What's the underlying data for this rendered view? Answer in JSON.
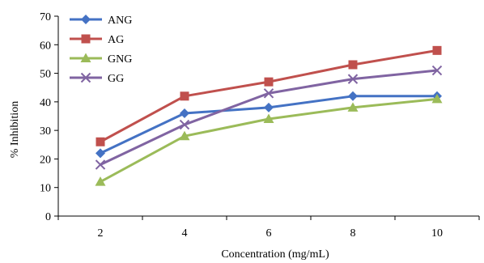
{
  "chart_data": {
    "type": "line",
    "title": "",
    "xlabel": "Concentration (mg/mL)",
    "ylabel": "% Inhibition",
    "categories": [
      "2",
      "4",
      "6",
      "8",
      "10"
    ],
    "ylim": [
      0,
      70
    ],
    "yticks": [
      0,
      10,
      20,
      30,
      40,
      50,
      60,
      70
    ],
    "grid": false,
    "legend": "top-left",
    "series": [
      {
        "name": "ANG",
        "color": "#4472C4",
        "marker": "diamond",
        "values": [
          22,
          36,
          38,
          42,
          42
        ]
      },
      {
        "name": "AG",
        "color": "#C0504D",
        "marker": "square",
        "values": [
          26,
          42,
          47,
          53,
          58
        ]
      },
      {
        "name": "GNG",
        "color": "#9BBB59",
        "marker": "triangle",
        "values": [
          12,
          28,
          34,
          38,
          41
        ]
      },
      {
        "name": "GG",
        "color": "#8064A2",
        "marker": "x",
        "values": [
          18,
          32,
          43,
          48,
          51
        ]
      }
    ]
  }
}
